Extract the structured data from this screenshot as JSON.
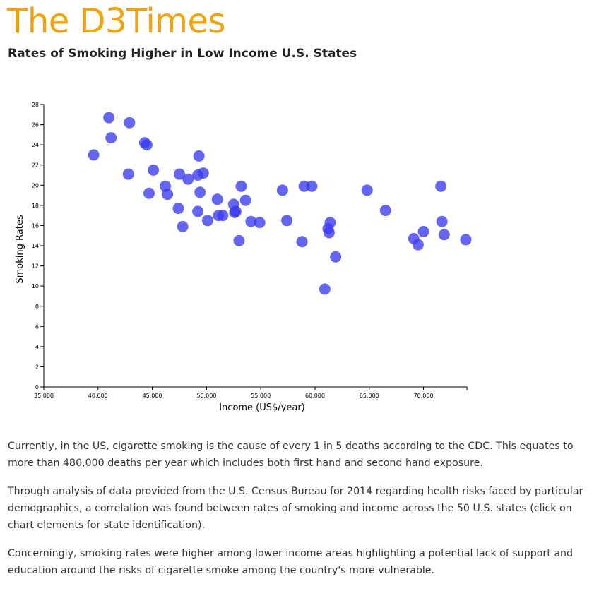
{
  "header": {
    "masthead": "The D3Times",
    "subtitle": "Rates of Smoking Higher in Low Income U.S. States"
  },
  "colors": {
    "masthead": "#F2A20C",
    "point": "#3A3AF0"
  },
  "chart_data": {
    "type": "scatter",
    "title": "Rates of Smoking Higher in Low Income U.S. States",
    "xlabel": "Income (US$/year)",
    "ylabel": "Smoking Rates",
    "xlim": [
      35000,
      74000
    ],
    "ylim": [
      0,
      28
    ],
    "xticks": [
      35000,
      40000,
      45000,
      50000,
      55000,
      60000,
      65000,
      70000
    ],
    "xtick_labels": [
      "35,000",
      "40,000",
      "45,000",
      "50,000",
      "55,000",
      "60,000",
      "65,000",
      "70,000"
    ],
    "yticks": [
      0,
      2,
      4,
      6,
      8,
      10,
      12,
      14,
      16,
      18,
      20,
      22,
      24,
      26,
      28
    ],
    "ytick_labels": [
      "0",
      "2",
      "4",
      "6",
      "8",
      "10",
      "12",
      "14",
      "16",
      "18",
      "20",
      "22",
      "24",
      "26",
      "28"
    ],
    "grid": false,
    "points": [
      {
        "x": 39600,
        "y": 23.0
      },
      {
        "x": 41000,
        "y": 26.7
      },
      {
        "x": 41200,
        "y": 24.7
      },
      {
        "x": 42800,
        "y": 21.1
      },
      {
        "x": 42900,
        "y": 26.2
      },
      {
        "x": 44300,
        "y": 24.2
      },
      {
        "x": 44500,
        "y": 24.0
      },
      {
        "x": 44700,
        "y": 19.2
      },
      {
        "x": 45100,
        "y": 21.5
      },
      {
        "x": 46200,
        "y": 19.9
      },
      {
        "x": 46400,
        "y": 19.1
      },
      {
        "x": 47400,
        "y": 17.7
      },
      {
        "x": 47500,
        "y": 21.1
      },
      {
        "x": 47800,
        "y": 15.9
      },
      {
        "x": 48300,
        "y": 20.6
      },
      {
        "x": 49200,
        "y": 17.4
      },
      {
        "x": 49200,
        "y": 21.0
      },
      {
        "x": 49300,
        "y": 22.9
      },
      {
        "x": 49400,
        "y": 19.3
      },
      {
        "x": 49700,
        "y": 21.2
      },
      {
        "x": 50100,
        "y": 16.5
      },
      {
        "x": 51000,
        "y": 18.6
      },
      {
        "x": 51100,
        "y": 17.0
      },
      {
        "x": 51500,
        "y": 17.0
      },
      {
        "x": 52500,
        "y": 18.1
      },
      {
        "x": 52600,
        "y": 17.3
      },
      {
        "x": 52700,
        "y": 17.4
      },
      {
        "x": 53000,
        "y": 14.5
      },
      {
        "x": 53200,
        "y": 19.9
      },
      {
        "x": 53600,
        "y": 18.5
      },
      {
        "x": 54100,
        "y": 16.4
      },
      {
        "x": 54900,
        "y": 16.3
      },
      {
        "x": 57000,
        "y": 19.5
      },
      {
        "x": 57400,
        "y": 16.5
      },
      {
        "x": 58800,
        "y": 14.4
      },
      {
        "x": 59000,
        "y": 19.9
      },
      {
        "x": 59700,
        "y": 19.9
      },
      {
        "x": 60900,
        "y": 9.7
      },
      {
        "x": 61200,
        "y": 15.7
      },
      {
        "x": 61300,
        "y": 15.3
      },
      {
        "x": 61400,
        "y": 16.3
      },
      {
        "x": 61900,
        "y": 12.9
      },
      {
        "x": 64800,
        "y": 19.5
      },
      {
        "x": 66500,
        "y": 17.5
      },
      {
        "x": 69100,
        "y": 14.7
      },
      {
        "x": 69500,
        "y": 14.1
      },
      {
        "x": 70000,
        "y": 15.4
      },
      {
        "x": 71600,
        "y": 19.9
      },
      {
        "x": 71700,
        "y": 16.4
      },
      {
        "x": 71900,
        "y": 15.1
      },
      {
        "x": 73900,
        "y": 14.6
      }
    ]
  },
  "article": {
    "p1": "Currently, in the US, cigarette smoking is the cause of every 1 in 5 deaths according to the CDC. This equates to more than 480,000 deaths per year which includes both first hand and second hand exposure.",
    "p2": "Through analysis of data provided from the U.S. Census Bureau for 2014 regarding health risks faced by particular demographics, a correlation was found between rates of smoking and income across the 50 U.S. states (click on chart elements for state identification).",
    "p3": "Concerningly, smoking rates were higher among lower income areas highlighting a potential lack of support and education around the risks of cigarette smoke among the country's more vulnerable."
  }
}
